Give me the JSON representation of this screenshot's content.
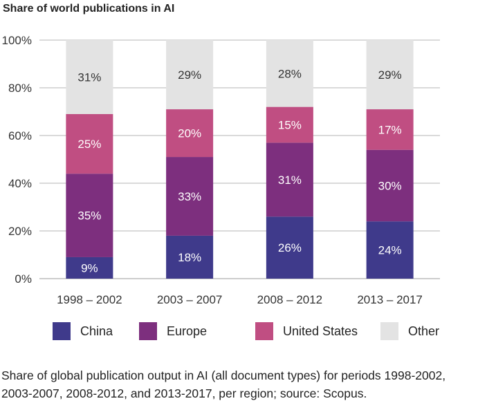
{
  "chart_data": {
    "type": "bar",
    "stacked": true,
    "title": "Share of world publications in AI",
    "categories": [
      "1998 – 2002",
      "2003 – 2007",
      "2008 – 2012",
      "2013 – 2017"
    ],
    "series": [
      {
        "name": "China",
        "color": "#3f3a8b",
        "values": [
          9,
          18,
          26,
          24
        ],
        "labels": [
          "9%",
          "18%",
          "26%",
          "24%"
        ]
      },
      {
        "name": "Europe",
        "color": "#7d2f7e",
        "values": [
          35,
          33,
          31,
          30
        ],
        "labels": [
          "35%",
          "33%",
          "31%",
          "30%"
        ]
      },
      {
        "name": "United States",
        "color": "#c04e82",
        "values": [
          25,
          20,
          15,
          17
        ],
        "labels": [
          "25%",
          "20%",
          "15%",
          "17%"
        ]
      },
      {
        "name": "Other",
        "color": "#e3e3e3",
        "values": [
          31,
          29,
          28,
          29
        ],
        "labels": [
          "31%",
          "29%",
          "28%",
          "29%"
        ]
      }
    ],
    "ylim": [
      0,
      100
    ],
    "yticks": [
      "0%",
      "20%",
      "40%",
      "60%",
      "80%",
      "100%"
    ],
    "grid": true,
    "legend_position": "bottom"
  },
  "caption": "Share of global publication output in AI (all document types) for periods 1998-2002, 2003-2007, 2008-2012, and 2013-2017, per region; source: Scopus."
}
